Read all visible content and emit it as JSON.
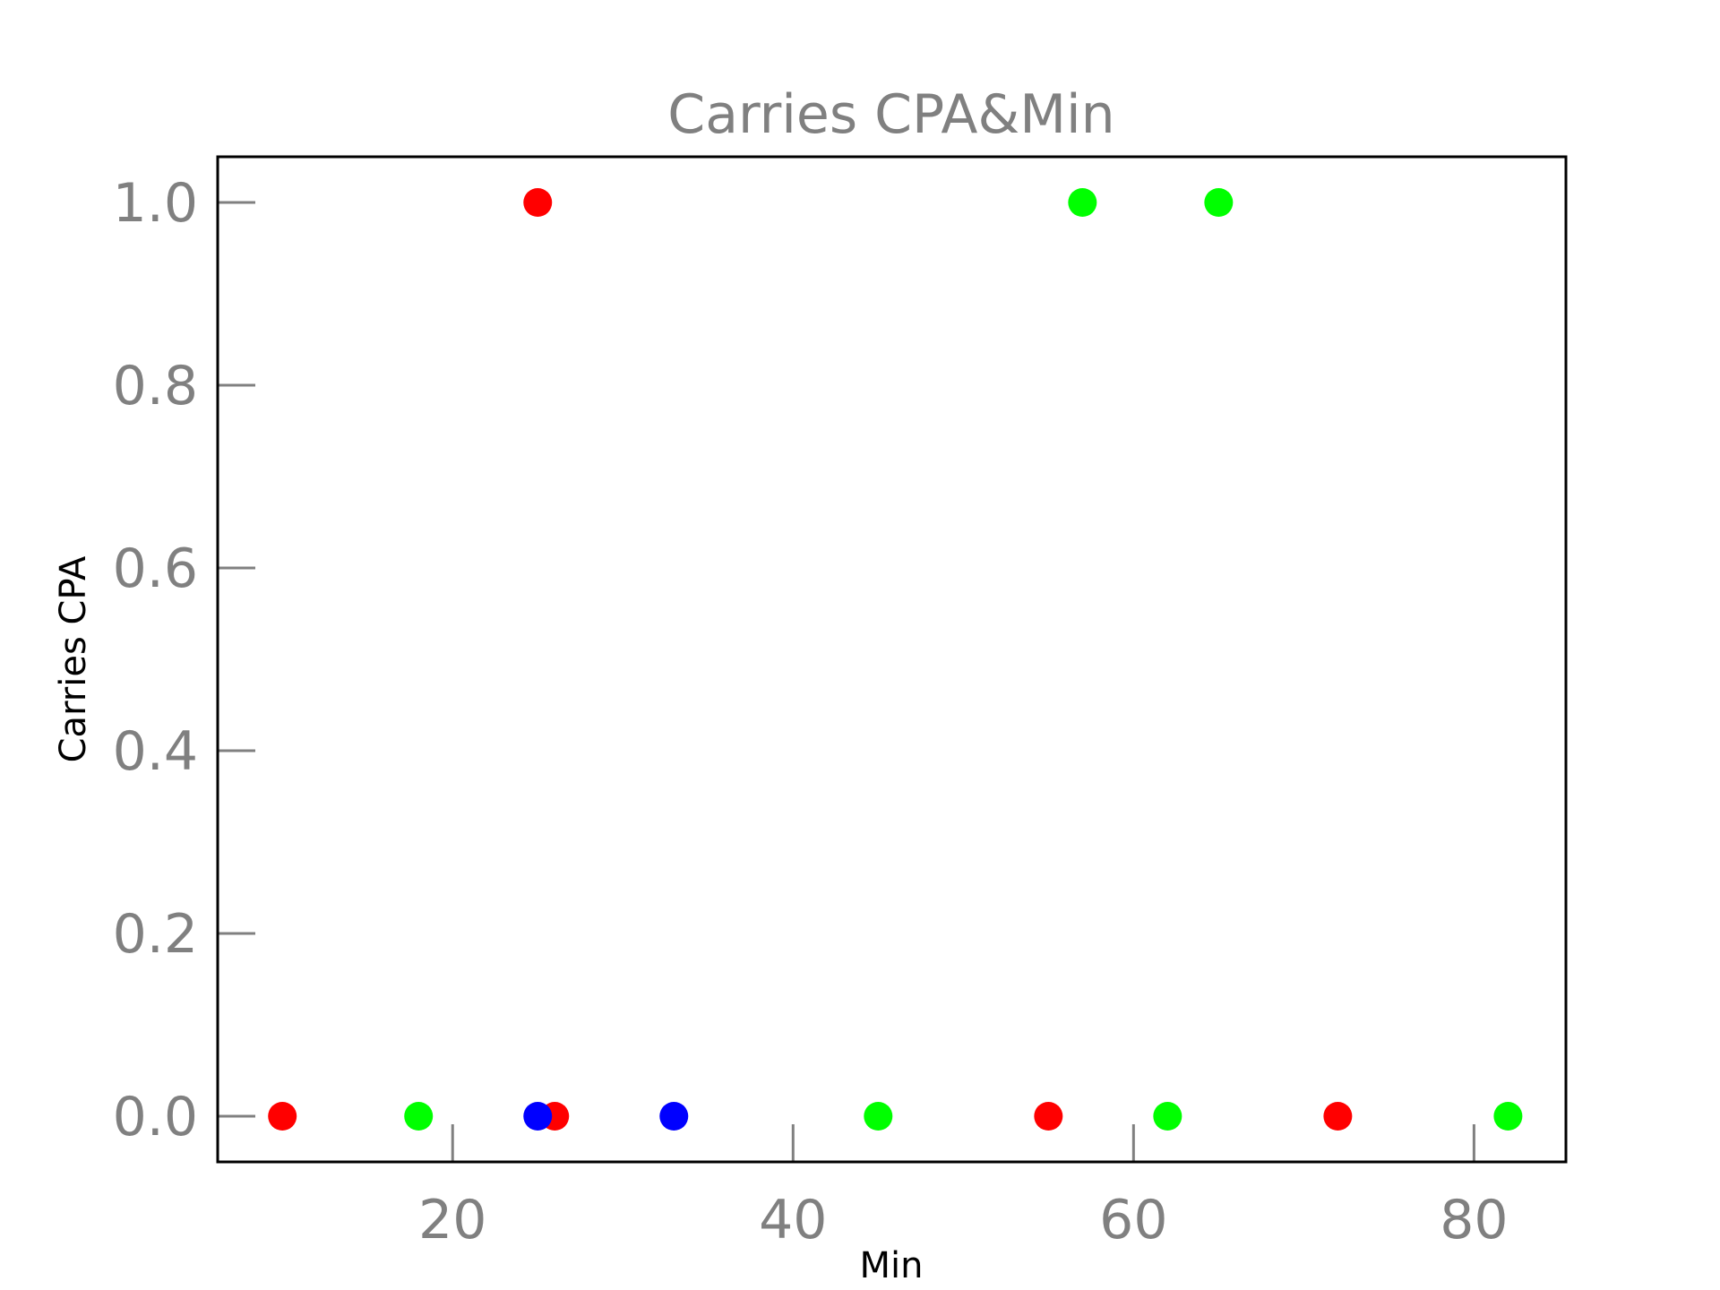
{
  "chart_data": {
    "type": "scatter",
    "title": "Carries CPA&Min",
    "xlabel": "Min",
    "ylabel": "Carries CPA",
    "xlim": [
      6.2,
      85.4
    ],
    "ylim": [
      -0.05,
      1.05
    ],
    "xticks": [
      20,
      40,
      60,
      80
    ],
    "yticks": [
      0.0,
      0.2,
      0.4,
      0.6,
      0.8,
      1.0
    ],
    "xtick_labels": [
      "20",
      "40",
      "60",
      "80"
    ],
    "ytick_labels": [
      "0.0",
      "0.2",
      "0.4",
      "0.6",
      "0.8",
      "1.0"
    ],
    "grid": false,
    "points": [
      {
        "x": 10,
        "y": 0,
        "color": "#ff0000"
      },
      {
        "x": 18,
        "y": 0,
        "color": "#00ff00"
      },
      {
        "x": 25,
        "y": 1,
        "color": "#ff0000"
      },
      {
        "x": 26,
        "y": 0,
        "color": "#ff0000"
      },
      {
        "x": 25,
        "y": 0,
        "color": "#0000ff"
      },
      {
        "x": 33,
        "y": 0,
        "color": "#0000ff"
      },
      {
        "x": 45,
        "y": 0,
        "color": "#00ff00"
      },
      {
        "x": 55,
        "y": 0,
        "color": "#ff0000"
      },
      {
        "x": 57,
        "y": 1,
        "color": "#00ff00"
      },
      {
        "x": 62,
        "y": 0,
        "color": "#00ff00"
      },
      {
        "x": 65,
        "y": 1,
        "color": "#00ff00"
      },
      {
        "x": 72,
        "y": 0,
        "color": "#ff0000"
      },
      {
        "x": 82,
        "y": 0,
        "color": "#00ff00"
      }
    ]
  }
}
